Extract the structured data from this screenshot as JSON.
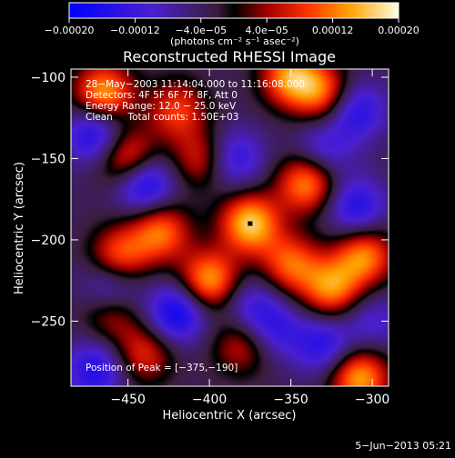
{
  "chart_data": {
    "type": "heatmap",
    "title": "Reconstructed RHESSI Image",
    "xlabel": "Heliocentric X (arcsec)",
    "ylabel": "Heliocentric Y (arcsec)",
    "xlim": [
      -485,
      -290
    ],
    "ylim": [
      -290,
      -95
    ],
    "xticks": [
      -450,
      -400,
      -350,
      -300
    ],
    "xtick_labels": [
      "−450",
      "−400",
      "−350",
      "−300"
    ],
    "yticks": [
      -100,
      -150,
      -200,
      -250
    ],
    "ytick_labels": [
      "−100",
      "−150",
      "−200",
      "−250"
    ],
    "colorbar": {
      "range": [
        -0.0002,
        0.0002
      ],
      "ticks": [
        -0.0002,
        -0.00012,
        -4e-05,
        4e-05,
        0.00012,
        0.0002
      ],
      "tick_labels": [
        "−0.00020",
        "−0.00012",
        "−4.0e−05",
        "4.0e−05",
        "0.00012",
        "0.00020"
      ],
      "label": "(photons cm⁻² s⁻¹ asec⁻²)"
    },
    "info_lines": [
      "28−May−2003 11:14:04.000 to 11:16:08.000",
      "Detectors: 4F 5F 6F 7F 8F, Att 0",
      "Energy Range: 12.0 − 25.0 keV",
      "Clean     Total counts: 1.50E+03"
    ],
    "peak_text": "Position of Peak = [−375,−190]",
    "peak": [
      -375,
      -190
    ],
    "sources": [
      {
        "x": -375,
        "y": -190,
        "amp": 1.0
      },
      {
        "x": -400,
        "y": -225,
        "amp": 0.9
      },
      {
        "x": -430,
        "y": -195,
        "amp": 0.75
      },
      {
        "x": -455,
        "y": -210,
        "amp": 0.7
      },
      {
        "x": -450,
        "y": -150,
        "amp": 0.8
      },
      {
        "x": -465,
        "y": -110,
        "amp": 0.9
      },
      {
        "x": -420,
        "y": -120,
        "amp": 0.6
      },
      {
        "x": -405,
        "y": -150,
        "amp": 0.55
      },
      {
        "x": -350,
        "y": -100,
        "amp": 0.85
      },
      {
        "x": -330,
        "y": -110,
        "amp": 0.7
      },
      {
        "x": -340,
        "y": -165,
        "amp": 0.85
      },
      {
        "x": -350,
        "y": -215,
        "amp": 0.7
      },
      {
        "x": -325,
        "y": -230,
        "amp": 0.8
      },
      {
        "x": -305,
        "y": -210,
        "amp": 0.8
      },
      {
        "x": -308,
        "y": -285,
        "amp": 0.9
      },
      {
        "x": -440,
        "y": -270,
        "amp": 0.55
      },
      {
        "x": -460,
        "y": -245,
        "amp": 0.5
      },
      {
        "x": -380,
        "y": -265,
        "amp": 0.5
      },
      {
        "x": -440,
        "y": -165,
        "amp": -0.8
      },
      {
        "x": -470,
        "y": -135,
        "amp": -0.7
      },
      {
        "x": -310,
        "y": -120,
        "amp": -0.6
      },
      {
        "x": -385,
        "y": -150,
        "amp": -0.55
      },
      {
        "x": -330,
        "y": -145,
        "amp": -0.45
      },
      {
        "x": -420,
        "y": -245,
        "amp": -0.75
      },
      {
        "x": -460,
        "y": -230,
        "amp": -0.55
      },
      {
        "x": -360,
        "y": -255,
        "amp": -0.45
      },
      {
        "x": -375,
        "y": -240,
        "amp": -0.4
      },
      {
        "x": -310,
        "y": -180,
        "amp": -0.6
      },
      {
        "x": -330,
        "y": -265,
        "amp": -0.55
      },
      {
        "x": -470,
        "y": -280,
        "amp": -0.6
      },
      {
        "x": -300,
        "y": -250,
        "amp": -0.35
      }
    ]
  },
  "timestamp": "5−Jun−2013 05:21"
}
